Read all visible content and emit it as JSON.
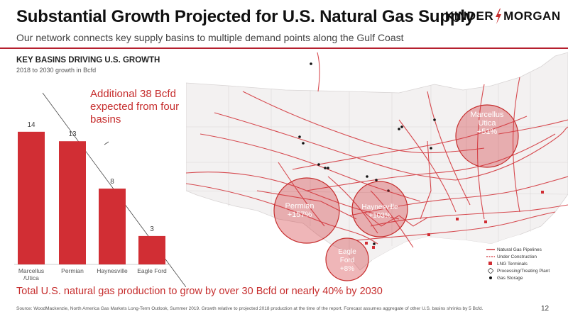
{
  "header": {
    "title": "Substantial Growth Projected for U.S. Natural Gas Supply",
    "subtitle": "Our network connects key supply basins to multiple demand points along the Gulf Coast",
    "logo_left": "KINDER",
    "logo_right": "MORGAN"
  },
  "section": {
    "title": "KEY BASINS DRIVING U.S. GROWTH",
    "subtitle": "2018 to 2030 growth in Bcfd"
  },
  "callout": {
    "text": "Additional 38 Bcfd expected from four basins"
  },
  "chart_data": {
    "type": "bar",
    "title": "",
    "xlabel": "",
    "ylabel": "",
    "categories": [
      "Marcellus\n/Utica",
      "Permian",
      "Haynesville",
      "Eagle Ford"
    ],
    "values": [
      14,
      13,
      8,
      3
    ],
    "ylim": [
      0,
      16
    ],
    "grid": false,
    "bar_color": "#d12e34"
  },
  "map": {
    "basins": [
      {
        "name": "Marcellus\nUtica",
        "growth": "+51%"
      },
      {
        "name": "Permian",
        "growth": "+157%"
      },
      {
        "name": "Haynesville",
        "growth": "+103%"
      },
      {
        "name": "Eagle\nFord",
        "growth": "+8%"
      }
    ],
    "circle_color": "#d12e34"
  },
  "legend": {
    "items": [
      {
        "label": "Natural Gas Pipelines",
        "icon": "line-red"
      },
      {
        "label": "Under Construction",
        "icon": "line-dashed"
      },
      {
        "label": "LNG Terminals",
        "icon": "lng-terminal-icon"
      },
      {
        "label": "Processing/Treating Plant",
        "icon": "plant-diamond-icon"
      },
      {
        "label": "Gas Storage",
        "icon": "storage-dot-icon"
      }
    ]
  },
  "footer": {
    "statement": "Total U.S. natural gas production to grow by over 30 Bcfd or nearly 40% by 2030",
    "source": "Source:  WoodMackenzie, North America Gas Markets Long-Term Outlook, Summer 2019. Growth relative to projected 2018 production at the time of the report. Forecast assumes aggregate of other U.S. basins shrinks by 5 Bcfd.",
    "page_number": "12"
  },
  "colors": {
    "accent": "#c62d2d",
    "rule": "#b51f2e"
  }
}
